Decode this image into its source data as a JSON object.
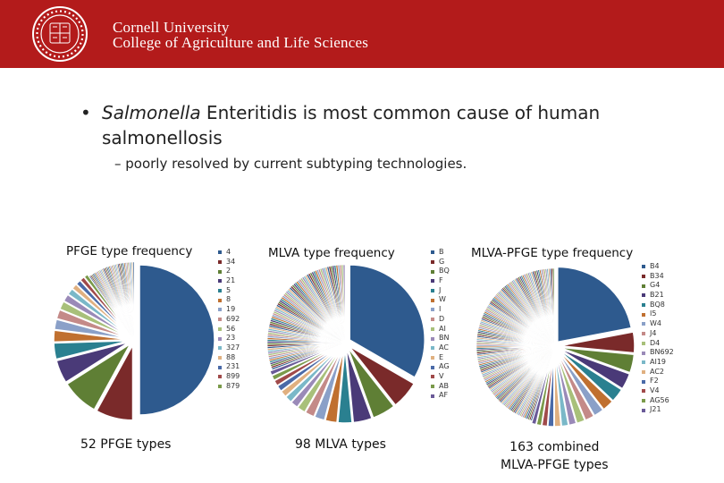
{
  "header": {
    "seal_label": "Cornell University seal",
    "university": "Cornell University",
    "college": "College of Agriculture and Life Sciences",
    "bg_color": "#b31b1b"
  },
  "slide": {
    "bullet1_symbol": "•",
    "bullet1_italic": "Salmonella",
    "bullet1_rest": " Enteritidis is most common cause of human salmonellosis",
    "bullet2": "– poorly resolved by current subtyping technologies."
  },
  "chart_data": [
    {
      "type": "pie",
      "title": "PFGE type  frequency",
      "caption": "52 PFGE types",
      "legend": [
        "4",
        "34",
        "2",
        "21",
        "5",
        "8",
        "19",
        "692",
        "56",
        "23",
        "327",
        "88",
        "231",
        "899",
        "879"
      ],
      "colors": [
        "#2e5a8e",
        "#7a2a2a",
        "#5f7f35",
        "#4a3a78",
        "#2a8090",
        "#c07030",
        "#8aa0c8",
        "#c48a88",
        "#a8c07a",
        "#9a8ab8",
        "#7ab8c8",
        "#e0b080",
        "#4a6aa8",
        "#a04a4a",
        "#7a9a4a"
      ],
      "values": [
        50,
        8,
        8,
        5,
        3.5,
        2.5,
        2.2,
        2,
        1.8,
        1.6,
        1.4,
        1.2,
        1.1,
        1,
        0.9
      ],
      "tail_slices": 37,
      "tail_total": 9.8
    },
    {
      "type": "pie",
      "title": "MLVA type  frequency",
      "caption": "98 MLVA types",
      "legend": [
        "B",
        "G",
        "BQ",
        "F",
        "J",
        "W",
        "I",
        "D",
        "AI",
        "BN",
        "AC",
        "E",
        "AG",
        "V",
        "AB",
        "AF"
      ],
      "colors": [
        "#2e5a8e",
        "#7a2a2a",
        "#5f7f35",
        "#4a3a78",
        "#2a8090",
        "#c07030",
        "#8aa0c8",
        "#c48a88",
        "#a8c07a",
        "#9a8ab8",
        "#7ab8c8",
        "#e0b080",
        "#4a6aa8",
        "#a04a4a",
        "#7a9a4a",
        "#6a5a98"
      ],
      "values": [
        33,
        6,
        5,
        4,
        3,
        2.5,
        2.2,
        2,
        1.8,
        1.6,
        1.5,
        1.4,
        1.3,
        1.2,
        1.1,
        1
      ],
      "tail_slices": 82,
      "tail_total": 30.4
    },
    {
      "type": "pie",
      "title": "MLVA-PFGE type frequency",
      "caption": "163 combined\nMLVA-PFGE types",
      "legend": [
        "B4",
        "B34",
        "G4",
        "B21",
        "BQ8",
        "I5",
        "W4",
        "J4",
        "D4",
        "BN692",
        "AI19",
        "AC2",
        "F2",
        "V4",
        "AG56",
        "J21"
      ],
      "colors": [
        "#2e5a8e",
        "#7a2a2a",
        "#5f7f35",
        "#4a3a78",
        "#2a8090",
        "#c07030",
        "#8aa0c8",
        "#c48a88",
        "#a8c07a",
        "#9a8ab8",
        "#7ab8c8",
        "#e0b080",
        "#4a6aa8",
        "#a04a4a",
        "#7a9a4a",
        "#6a5a98"
      ],
      "values": [
        22,
        4.5,
        4,
        3.5,
        3,
        2.5,
        2.2,
        2,
        1.8,
        1.6,
        1.5,
        1.4,
        1.3,
        1.2,
        1.1,
        1
      ],
      "tail_slices": 147,
      "tail_total": 45.4
    }
  ]
}
